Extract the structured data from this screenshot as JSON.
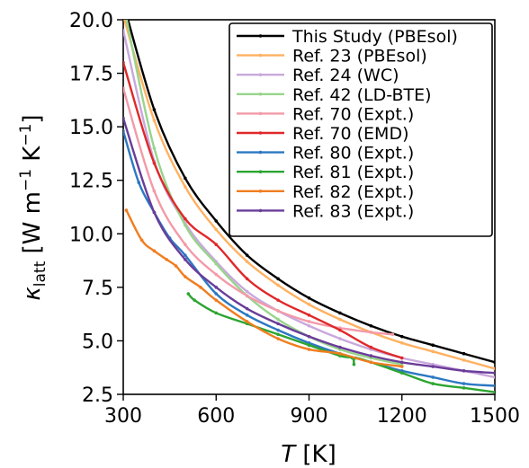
{
  "chart_data": {
    "type": "line",
    "title": "",
    "xlabel": "T [K]",
    "ylabel": "κlatt [W m−1 K−1]",
    "xlabel_parts": {
      "symbol": "T",
      "unit": " [K]"
    },
    "ylabel_parts": {
      "symbol": "κ",
      "subscript": "latt",
      "unit_open": " [W m",
      "exp1": "−1",
      "unit_mid": " K",
      "exp2": "−1",
      "unit_close": "]"
    },
    "xlim": [
      300,
      1500
    ],
    "ylim": [
      2.5,
      20.0
    ],
    "xticks": [
      300,
      600,
      900,
      1200,
      1500
    ],
    "xtick_labels": [
      "300",
      "600",
      "900",
      "1200",
      "1500"
    ],
    "yticks": [
      2.5,
      5.0,
      7.5,
      10.0,
      12.5,
      15.0,
      17.5,
      20.0
    ],
    "ytick_labels": [
      "2.5",
      "5.0",
      "7.5",
      "10.0",
      "12.5",
      "15.0",
      "17.5",
      "20.0"
    ],
    "grid": false,
    "legend_position": "top-right",
    "series": [
      {
        "name": "This Study (PBEsol)",
        "color": "#000000",
        "x": [
          300,
          400,
          500,
          600,
          700,
          800,
          900,
          1000,
          1100,
          1200,
          1300,
          1400,
          1500
        ],
        "y": [
          20.8,
          15.8,
          12.6,
          10.6,
          9.0,
          7.9,
          7.0,
          6.3,
          5.7,
          5.2,
          4.8,
          4.4,
          4.0
        ]
      },
      {
        "name": "Ref. 23 (PBEsol)",
        "color": "#ffb161",
        "x": [
          300,
          400,
          500,
          600,
          700,
          800,
          900,
          1000,
          1100,
          1200,
          1300,
          1400,
          1500
        ],
        "y": [
          20.2,
          15.3,
          12.2,
          10.2,
          8.7,
          7.6,
          6.7,
          6.0,
          5.4,
          4.9,
          4.5,
          4.1,
          3.7
        ]
      },
      {
        "name": "Ref. 24 (WC)",
        "color": "#c9a8dc",
        "x": [
          300,
          400,
          500,
          600,
          700,
          800,
          900,
          1000,
          1100,
          1200,
          1300,
          1400,
          1500
        ],
        "y": [
          19.5,
          13.4,
          10.5,
          8.7,
          7.3,
          6.4,
          5.7,
          5.1,
          4.6,
          4.2,
          3.9,
          3.6,
          3.3
        ]
      },
      {
        "name": "Ref. 42 (LD-BTE)",
        "color": "#98d48c",
        "x": [
          300,
          400,
          500,
          600,
          700,
          800,
          900,
          1000,
          1100,
          1200
        ],
        "y": [
          20.8,
          14.0,
          10.4,
          8.6,
          7.1,
          6.0,
          5.2,
          4.6,
          4.2,
          3.9
        ]
      },
      {
        "name": "Ref. 70 (Expt.)",
        "color": "#f39aa8",
        "x": [
          300,
          400,
          500,
          600,
          700,
          800,
          900,
          1000,
          1100,
          1170
        ],
        "y": [
          16.8,
          12.0,
          9.5,
          8.1,
          7.1,
          6.4,
          5.9,
          5.6,
          5.4,
          5.3
        ]
      },
      {
        "name": "Ref. 70 (EMD)",
        "color": "#e0282a",
        "x": [
          300,
          400,
          500,
          600,
          700,
          800,
          900,
          1000,
          1100,
          1200
        ],
        "y": [
          18.0,
          13.3,
          10.7,
          9.5,
          7.9,
          6.9,
          6.2,
          5.5,
          4.7,
          4.2
        ]
      },
      {
        "name": "Ref. 80 (Expt.)",
        "color": "#2c78c2",
        "x": [
          300,
          350,
          400,
          450,
          500,
          600,
          700,
          800,
          900,
          1000,
          1100,
          1200,
          1300,
          1400,
          1500
        ],
        "y": [
          14.8,
          12.4,
          11.0,
          9.8,
          9.0,
          7.2,
          6.2,
          5.5,
          4.9,
          4.4,
          4.0,
          3.6,
          3.3,
          3.0,
          2.9
        ]
      },
      {
        "name": "Ref. 81 (Expt.)",
        "color": "#2ca531",
        "x": [
          510,
          530,
          600,
          700,
          800,
          900,
          1000,
          1040,
          1045,
          1050,
          1100,
          1200,
          1300,
          1400,
          1500
        ],
        "y": [
          7.2,
          6.9,
          6.3,
          5.8,
          5.3,
          4.8,
          4.3,
          4.2,
          3.9,
          4.2,
          4.0,
          3.5,
          3.0,
          2.8,
          2.6
        ]
      },
      {
        "name": "Ref. 82 (Expt.)",
        "color": "#f07d1e",
        "x": [
          310,
          360,
          400,
          440,
          470,
          500,
          550,
          600,
          700,
          800,
          900,
          1000,
          1100,
          1200
        ],
        "y": [
          11.1,
          9.7,
          9.2,
          8.8,
          8.5,
          8.0,
          7.5,
          6.9,
          5.9,
          5.1,
          4.6,
          4.4,
          4.0,
          3.8
        ]
      },
      {
        "name": "Ref. 83 (Expt.)",
        "color": "#6a3d9a",
        "x": [
          300,
          400,
          500,
          600,
          700,
          800,
          900,
          1000,
          1100,
          1200,
          1300,
          1400,
          1500
        ],
        "y": [
          15.4,
          11.0,
          8.8,
          7.5,
          6.5,
          5.8,
          5.2,
          4.7,
          4.3,
          4.0,
          3.8,
          3.6,
          3.5
        ]
      }
    ]
  }
}
